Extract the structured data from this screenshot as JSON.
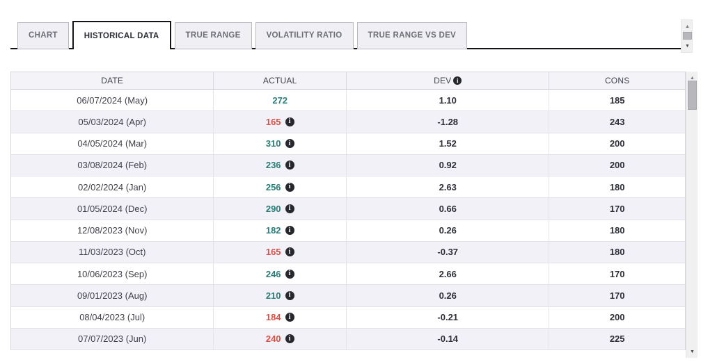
{
  "tabs": [
    {
      "label": "CHART",
      "active": false
    },
    {
      "label": "HISTORICAL DATA",
      "active": true
    },
    {
      "label": "TRUE RANGE",
      "active": false
    },
    {
      "label": "VOLATILITY RATIO",
      "active": false
    },
    {
      "label": "TRUE RANGE VS DEV",
      "active": false
    }
  ],
  "table": {
    "columns": [
      "DATE",
      "ACTUAL",
      "DEV",
      "CONS"
    ],
    "dev_header_info_icon": "i",
    "rows": [
      {
        "date": "06/07/2024 (May)",
        "actual": "272",
        "actual_color": "teal",
        "info_icon": false,
        "dev": "1.10",
        "cons": "185"
      },
      {
        "date": "05/03/2024 (Apr)",
        "actual": "165",
        "actual_color": "red",
        "info_icon": true,
        "dev": "-1.28",
        "cons": "243"
      },
      {
        "date": "04/05/2024 (Mar)",
        "actual": "310",
        "actual_color": "teal",
        "info_icon": true,
        "dev": "1.52",
        "cons": "200"
      },
      {
        "date": "03/08/2024 (Feb)",
        "actual": "236",
        "actual_color": "teal",
        "info_icon": true,
        "dev": "0.92",
        "cons": "200"
      },
      {
        "date": "02/02/2024 (Jan)",
        "actual": "256",
        "actual_color": "teal",
        "info_icon": true,
        "dev": "2.63",
        "cons": "180"
      },
      {
        "date": "01/05/2024 (Dec)",
        "actual": "290",
        "actual_color": "teal",
        "info_icon": true,
        "dev": "0.66",
        "cons": "170"
      },
      {
        "date": "12/08/2023 (Nov)",
        "actual": "182",
        "actual_color": "teal",
        "info_icon": true,
        "dev": "0.26",
        "cons": "180"
      },
      {
        "date": "11/03/2023 (Oct)",
        "actual": "165",
        "actual_color": "red",
        "info_icon": true,
        "dev": "-0.37",
        "cons": "180"
      },
      {
        "date": "10/06/2023 (Sep)",
        "actual": "246",
        "actual_color": "teal",
        "info_icon": true,
        "dev": "2.66",
        "cons": "170"
      },
      {
        "date": "09/01/2023 (Aug)",
        "actual": "210",
        "actual_color": "teal",
        "info_icon": true,
        "dev": "0.26",
        "cons": "170"
      },
      {
        "date": "08/04/2023 (Jul)",
        "actual": "184",
        "actual_color": "red",
        "info_icon": true,
        "dev": "-0.21",
        "cons": "200"
      },
      {
        "date": "07/07/2023 (Jun)",
        "actual": "240",
        "actual_color": "red",
        "info_icon": true,
        "dev": "-0.14",
        "cons": "225"
      }
    ]
  },
  "colors": {
    "positive_actual": "#2a7d78",
    "negative_actual": "#d95046",
    "info_icon_bg": "#26282e",
    "active_tab_border": "#131418"
  }
}
